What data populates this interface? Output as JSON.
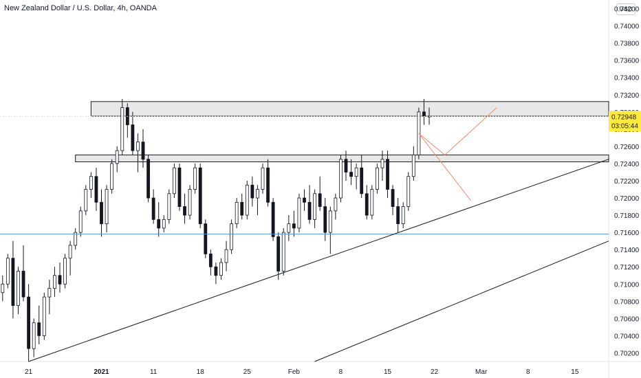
{
  "header": {
    "title": "New Zealand Dollar / U.S. Dollar, 4h, OANDA",
    "currency": "USD"
  },
  "price_badge": {
    "price": "0.72948",
    "countdown": "03:05:44"
  },
  "colors": {
    "up": "#2a2e39",
    "down": "#131722",
    "price_badge": "#ffeb3b",
    "support_line": "#5b8fd6",
    "projection": "#f08c6d",
    "zone_fill": "#e8e8e8"
  },
  "chart_data": {
    "type": "candlestick",
    "title": "New Zealand Dollar / U.S. Dollar, 4h, OANDA",
    "xlabel": "",
    "ylabel": "",
    "ylim": [
      0.701,
      0.743
    ],
    "y_ticks": [
      "0.74200",
      "0.74000",
      "0.73800",
      "0.73600",
      "0.73400",
      "0.73200",
      "0.73000",
      "0.72800",
      "0.72600",
      "0.72400",
      "0.72200",
      "0.72000",
      "0.71800",
      "0.71600",
      "0.71400",
      "0.71200",
      "0.71000",
      "0.70800",
      "0.70600",
      "0.70400",
      "0.70200"
    ],
    "x_ticks": [
      {
        "label": "21",
        "bar": 5
      },
      {
        "label": "2021",
        "bar": 19
      },
      {
        "label": "11",
        "bar": 29
      },
      {
        "label": "18",
        "bar": 38
      },
      {
        "label": "25",
        "bar": 47
      },
      {
        "label": "Feb",
        "bar": 56
      },
      {
        "label": "8",
        "bar": 65
      },
      {
        "label": "15",
        "bar": 74
      },
      {
        "label": "22",
        "bar": 83
      },
      {
        "label": "Mar",
        "bar": 92
      },
      {
        "label": "8",
        "bar": 101
      },
      {
        "label": "15",
        "bar": 110
      }
    ],
    "bar_count": 117,
    "candles": [
      [
        0.709,
        0.711,
        0.708,
        0.71
      ],
      [
        0.71,
        0.7135,
        0.7095,
        0.713
      ],
      [
        0.713,
        0.715,
        0.706,
        0.7075
      ],
      [
        0.7075,
        0.712,
        0.7065,
        0.7115
      ],
      [
        0.7115,
        0.7145,
        0.708,
        0.7085
      ],
      [
        0.7085,
        0.71,
        0.701,
        0.7025
      ],
      [
        0.7025,
        0.706,
        0.7015,
        0.7055
      ],
      [
        0.7055,
        0.7075,
        0.703,
        0.704
      ],
      [
        0.704,
        0.709,
        0.7035,
        0.7085
      ],
      [
        0.7085,
        0.7105,
        0.7065,
        0.7095
      ],
      [
        0.7095,
        0.712,
        0.7085,
        0.711
      ],
      [
        0.711,
        0.7125,
        0.709,
        0.71
      ],
      [
        0.71,
        0.7135,
        0.7095,
        0.713
      ],
      [
        0.713,
        0.715,
        0.711,
        0.7145
      ],
      [
        0.7145,
        0.7165,
        0.714,
        0.716
      ],
      [
        0.716,
        0.719,
        0.7155,
        0.7185
      ],
      [
        0.7185,
        0.7215,
        0.718,
        0.721
      ],
      [
        0.721,
        0.723,
        0.72,
        0.7225
      ],
      [
        0.7225,
        0.7235,
        0.7185,
        0.7195
      ],
      [
        0.7195,
        0.721,
        0.7155,
        0.717
      ],
      [
        0.717,
        0.7215,
        0.716,
        0.721
      ],
      [
        0.721,
        0.7245,
        0.7205,
        0.724
      ],
      [
        0.724,
        0.726,
        0.723,
        0.7255
      ],
      [
        0.7255,
        0.7315,
        0.725,
        0.7305
      ],
      [
        0.7305,
        0.731,
        0.727,
        0.7285
      ],
      [
        0.7285,
        0.73,
        0.725,
        0.7255
      ],
      [
        0.7255,
        0.7275,
        0.723,
        0.7265
      ],
      [
        0.7265,
        0.728,
        0.7235,
        0.7245
      ],
      [
        0.7245,
        0.725,
        0.7195,
        0.72
      ],
      [
        0.72,
        0.721,
        0.717,
        0.7175
      ],
      [
        0.7175,
        0.7195,
        0.7155,
        0.7165
      ],
      [
        0.7165,
        0.718,
        0.716,
        0.7175
      ],
      [
        0.7175,
        0.721,
        0.717,
        0.7205
      ],
      [
        0.7205,
        0.724,
        0.72,
        0.7235
      ],
      [
        0.7235,
        0.724,
        0.7185,
        0.719
      ],
      [
        0.719,
        0.7205,
        0.717,
        0.718
      ],
      [
        0.718,
        0.7215,
        0.7175,
        0.721
      ],
      [
        0.721,
        0.724,
        0.7205,
        0.7235
      ],
      [
        0.7235,
        0.724,
        0.7165,
        0.717
      ],
      [
        0.717,
        0.7175,
        0.713,
        0.7135
      ],
      [
        0.7135,
        0.714,
        0.711,
        0.712
      ],
      [
        0.712,
        0.7125,
        0.71,
        0.711
      ],
      [
        0.711,
        0.713,
        0.7105,
        0.7125
      ],
      [
        0.7125,
        0.715,
        0.7115,
        0.714
      ],
      [
        0.714,
        0.7175,
        0.7135,
        0.717
      ],
      [
        0.717,
        0.72,
        0.7165,
        0.7195
      ],
      [
        0.7195,
        0.7205,
        0.7175,
        0.718
      ],
      [
        0.718,
        0.722,
        0.7175,
        0.7215
      ],
      [
        0.7215,
        0.7225,
        0.719,
        0.72
      ],
      [
        0.72,
        0.7215,
        0.718,
        0.721
      ],
      [
        0.721,
        0.724,
        0.7205,
        0.7235
      ],
      [
        0.7235,
        0.7245,
        0.719,
        0.7195
      ],
      [
        0.7195,
        0.72,
        0.715,
        0.7155
      ],
      [
        0.7155,
        0.716,
        0.7105,
        0.7115
      ],
      [
        0.7115,
        0.7165,
        0.711,
        0.716
      ],
      [
        0.716,
        0.718,
        0.715,
        0.717
      ],
      [
        0.717,
        0.7185,
        0.7155,
        0.7165
      ],
      [
        0.7165,
        0.7205,
        0.716,
        0.72
      ],
      [
        0.72,
        0.721,
        0.7185,
        0.7195
      ],
      [
        0.7195,
        0.7215,
        0.717,
        0.7175
      ],
      [
        0.7175,
        0.721,
        0.7165,
        0.7205
      ],
      [
        0.7205,
        0.7225,
        0.7185,
        0.719
      ],
      [
        0.719,
        0.72,
        0.715,
        0.716
      ],
      [
        0.716,
        0.719,
        0.7135,
        0.7185
      ],
      [
        0.7185,
        0.7205,
        0.7175,
        0.72
      ],
      [
        0.72,
        0.725,
        0.7195,
        0.7245
      ],
      [
        0.7245,
        0.7255,
        0.722,
        0.723
      ],
      [
        0.723,
        0.7245,
        0.7215,
        0.7225
      ],
      [
        0.7225,
        0.724,
        0.721,
        0.7235
      ],
      [
        0.7235,
        0.725,
        0.72,
        0.7205
      ],
      [
        0.7205,
        0.7215,
        0.7175,
        0.718
      ],
      [
        0.718,
        0.7215,
        0.7175,
        0.721
      ],
      [
        0.721,
        0.724,
        0.7205,
        0.7235
      ],
      [
        0.7235,
        0.7255,
        0.722,
        0.7245
      ],
      [
        0.7245,
        0.7255,
        0.72,
        0.721
      ],
      [
        0.721,
        0.7215,
        0.718,
        0.719
      ],
      [
        0.719,
        0.72,
        0.716,
        0.717
      ],
      [
        0.717,
        0.7195,
        0.7165,
        0.719
      ],
      [
        0.719,
        0.723,
        0.7185,
        0.7225
      ],
      [
        0.7225,
        0.726,
        0.722,
        0.725
      ],
      [
        0.725,
        0.7305,
        0.7245,
        0.73
      ],
      [
        0.73,
        0.7315,
        0.7285,
        0.7295
      ],
      [
        0.7295,
        0.7305,
        0.7285,
        0.7295
      ]
    ]
  },
  "annotations": {
    "support_price": 0.7158,
    "resistance_zone": [
      0.7295,
      0.7312
    ],
    "mid_zone": [
      0.7242,
      0.725
    ]
  }
}
